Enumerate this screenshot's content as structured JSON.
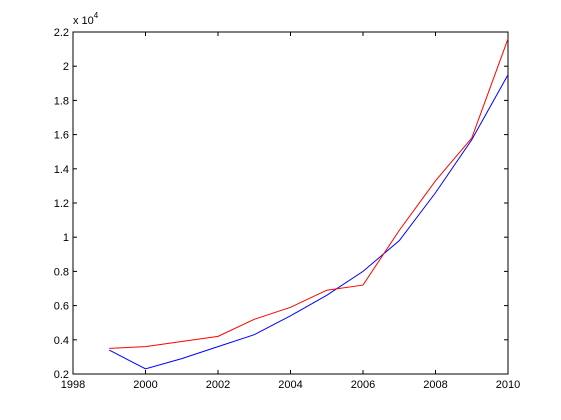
{
  "chart_data": {
    "type": "line",
    "x": [
      1999,
      2000,
      2001,
      2002,
      2003,
      2004,
      2005,
      2006,
      2007,
      2008,
      2009,
      2010
    ],
    "series": [
      {
        "color": "#0000ff",
        "values": [
          0.34,
          0.23,
          0.29,
          0.36,
          0.43,
          0.54,
          0.66,
          0.8,
          0.98,
          1.26,
          1.57,
          1.95
        ]
      },
      {
        "color": "#ff0000",
        "values": [
          0.35,
          0.36,
          0.39,
          0.42,
          0.52,
          0.59,
          0.69,
          0.72,
          1.04,
          1.33,
          1.58,
          2.16
        ]
      }
    ],
    "xlim": [
      1998,
      2010
    ],
    "xticks": [
      1998,
      2000,
      2002,
      2004,
      2006,
      2008,
      2010
    ],
    "ylim": [
      0.2,
      2.2
    ],
    "yticks": [
      0.2,
      0.4,
      0.6,
      0.8,
      1,
      1.2,
      1.4,
      1.6,
      1.8,
      2,
      2.2
    ],
    "y_multiplier": {
      "base": "x 10",
      "exponent": 4
    },
    "grid": false
  }
}
